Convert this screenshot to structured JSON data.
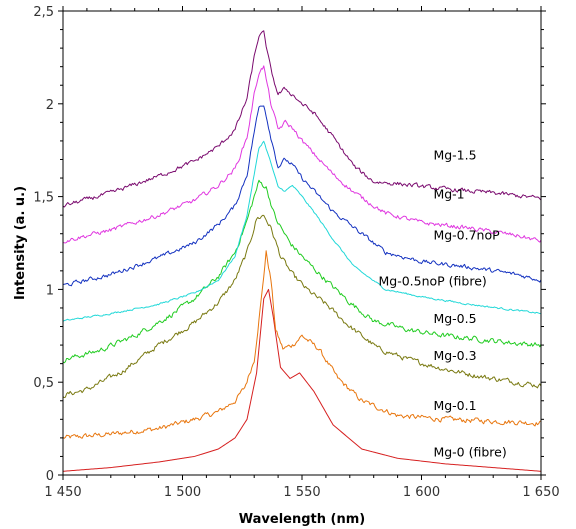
{
  "chart_data": {
    "type": "line",
    "xlabel": "Wavelength (nm)",
    "ylabel": "Intensity (a. u.)",
    "xlim": [
      1450,
      1650
    ],
    "ylim": [
      0,
      2.5
    ],
    "x_ticks": [
      {
        "value": 1450,
        "label": "1 450"
      },
      {
        "value": 1500,
        "label": "1 500"
      },
      {
        "value": 1550,
        "label": "1 550"
      },
      {
        "value": 1600,
        "label": "1 600"
      },
      {
        "value": 1650,
        "label": "1 650"
      }
    ],
    "y_ticks": [
      {
        "value": 0,
        "label": "0"
      },
      {
        "value": 0.5,
        "label": "0,5"
      },
      {
        "value": 1,
        "label": "1"
      },
      {
        "value": 1.5,
        "label": "1,5"
      },
      {
        "value": 2,
        "label": "2"
      },
      {
        "value": 2.5,
        "label": "2,5"
      }
    ],
    "grid": false,
    "series": [
      {
        "name": "Mg-0 (fibre)",
        "color": "#d62020",
        "noise": 0.0,
        "x": [
          1450,
          1470,
          1490,
          1505,
          1515,
          1522,
          1527,
          1531,
          1534,
          1536,
          1538,
          1541,
          1545,
          1549,
          1555,
          1563,
          1575,
          1590,
          1610,
          1630,
          1650
        ],
        "y": [
          0.02,
          0.04,
          0.07,
          0.1,
          0.14,
          0.2,
          0.3,
          0.55,
          0.95,
          1.0,
          0.85,
          0.58,
          0.52,
          0.55,
          0.45,
          0.27,
          0.14,
          0.09,
          0.06,
          0.04,
          0.02
        ]
      },
      {
        "name": "Mg-0.1",
        "color": "#e8760e",
        "noise": 0.012,
        "x": [
          1450,
          1470,
          1490,
          1505,
          1515,
          1522,
          1526,
          1530,
          1533,
          1535,
          1537,
          1539,
          1542,
          1546,
          1550,
          1557,
          1565,
          1575,
          1590,
          1610,
          1630,
          1650
        ],
        "y": [
          0.2,
          0.22,
          0.25,
          0.3,
          0.34,
          0.4,
          0.47,
          0.62,
          0.95,
          1.2,
          1.05,
          0.78,
          0.68,
          0.7,
          0.75,
          0.68,
          0.52,
          0.4,
          0.32,
          0.3,
          0.29,
          0.28
        ]
      },
      {
        "name": "Mg-0.3",
        "color": "#7a7a12",
        "noise": 0.012,
        "x": [
          1450,
          1460,
          1475,
          1490,
          1505,
          1515,
          1522,
          1527,
          1531,
          1534,
          1537,
          1541,
          1546,
          1552,
          1560,
          1570,
          1582,
          1595,
          1610,
          1625,
          1640,
          1650
        ],
        "y": [
          0.43,
          0.46,
          0.56,
          0.7,
          0.82,
          0.93,
          1.05,
          1.2,
          1.38,
          1.4,
          1.33,
          1.18,
          1.08,
          1.0,
          0.92,
          0.8,
          0.68,
          0.62,
          0.57,
          0.53,
          0.5,
          0.48
        ]
      },
      {
        "name": "Mg-0.5",
        "color": "#22cc22",
        "noise": 0.012,
        "x": [
          1450,
          1465,
          1480,
          1495,
          1505,
          1515,
          1522,
          1527,
          1530,
          1532,
          1535,
          1539,
          1545,
          1552,
          1560,
          1570,
          1580,
          1595,
          1610,
          1625,
          1640,
          1650
        ],
        "y": [
          0.62,
          0.67,
          0.75,
          0.86,
          0.95,
          1.07,
          1.2,
          1.37,
          1.5,
          1.58,
          1.55,
          1.38,
          1.25,
          1.15,
          1.05,
          0.93,
          0.83,
          0.78,
          0.75,
          0.73,
          0.71,
          0.7
        ]
      },
      {
        "name": "Mg-0.5noP (fibre)",
        "color": "#22d8d8",
        "noise": 0.004,
        "x": [
          1450,
          1470,
          1490,
          1505,
          1515,
          1522,
          1527,
          1530,
          1532,
          1534,
          1537,
          1540,
          1543,
          1546,
          1550,
          1556,
          1563,
          1572,
          1585,
          1600,
          1620,
          1650
        ],
        "y": [
          0.83,
          0.87,
          0.92,
          0.98,
          1.05,
          1.18,
          1.4,
          1.62,
          1.76,
          1.8,
          1.68,
          1.55,
          1.53,
          1.56,
          1.5,
          1.4,
          1.27,
          1.12,
          1.0,
          0.96,
          0.92,
          0.87
        ]
      },
      {
        "name": "Mg-0.7noP",
        "color": "#1432c0",
        "noise": 0.01,
        "x": [
          1450,
          1470,
          1490,
          1505,
          1515,
          1522,
          1527,
          1530,
          1532,
          1534,
          1537,
          1540,
          1543,
          1546,
          1550,
          1555,
          1563,
          1572,
          1585,
          1600,
          1620,
          1640,
          1650
        ],
        "y": [
          1.02,
          1.08,
          1.17,
          1.25,
          1.35,
          1.45,
          1.62,
          1.85,
          1.98,
          2.0,
          1.82,
          1.66,
          1.7,
          1.67,
          1.6,
          1.53,
          1.42,
          1.33,
          1.2,
          1.15,
          1.12,
          1.08,
          1.05
        ]
      },
      {
        "name": "Mg-1",
        "color": "#e038e0",
        "noise": 0.01,
        "x": [
          1450,
          1470,
          1490,
          1505,
          1515,
          1522,
          1527,
          1530,
          1532,
          1534,
          1537,
          1540,
          1543,
          1546,
          1550,
          1555,
          1563,
          1572,
          1585,
          1600,
          1620,
          1640,
          1650
        ],
        "y": [
          1.26,
          1.32,
          1.4,
          1.48,
          1.56,
          1.65,
          1.82,
          2.05,
          2.17,
          2.2,
          2.0,
          1.86,
          1.9,
          1.87,
          1.8,
          1.73,
          1.62,
          1.52,
          1.41,
          1.36,
          1.33,
          1.29,
          1.26
        ]
      },
      {
        "name": "Mg-1.5",
        "color": "#7a0a6e",
        "noise": 0.01,
        "x": [
          1450,
          1470,
          1490,
          1505,
          1515,
          1522,
          1527,
          1530,
          1532,
          1534,
          1537,
          1540,
          1543,
          1546,
          1550,
          1555,
          1563,
          1572,
          1580,
          1590,
          1610,
          1630,
          1650
        ],
        "y": [
          1.45,
          1.52,
          1.61,
          1.69,
          1.77,
          1.86,
          2.03,
          2.25,
          2.37,
          2.38,
          2.18,
          2.05,
          2.08,
          2.05,
          2.0,
          1.95,
          1.82,
          1.66,
          1.58,
          1.57,
          1.54,
          1.52,
          1.49
        ]
      }
    ],
    "annotations": [
      {
        "text": "Mg-1.5",
        "x": 1605,
        "y": 1.7
      },
      {
        "text": "Mg-1",
        "x": 1605,
        "y": 1.49
      },
      {
        "text": "Mg-0.7noP",
        "x": 1605,
        "y": 1.27
      },
      {
        "text": "Mg-0.5noP (fibre)",
        "x": 1582,
        "y": 1.02
      },
      {
        "text": "Mg-0.5",
        "x": 1605,
        "y": 0.82
      },
      {
        "text": "Mg-0.3",
        "x": 1605,
        "y": 0.62
      },
      {
        "text": "Mg-0.1",
        "x": 1605,
        "y": 0.35
      },
      {
        "text": "Mg-0 (fibre)",
        "x": 1605,
        "y": 0.1
      }
    ]
  }
}
